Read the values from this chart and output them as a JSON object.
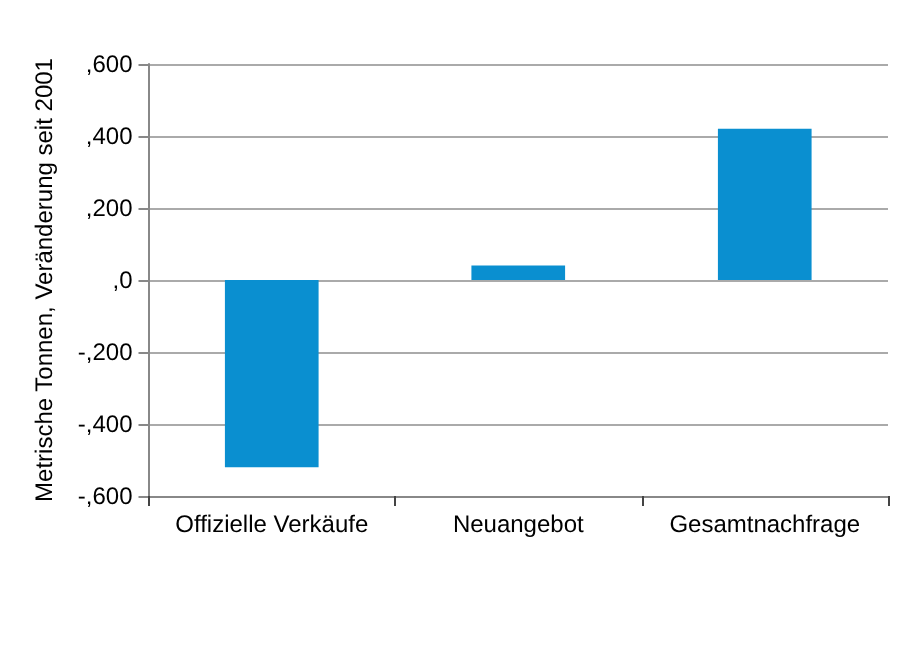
{
  "chart_data": {
    "type": "bar",
    "ylabel": "Metrische Tonnen, Veränderung seit 2001",
    "categories": [
      "Offizielle Verkäufe",
      "Neuangebot",
      "Gesamtnachfrage"
    ],
    "values": [
      -520,
      40,
      420
    ],
    "color": "#0a8fd0",
    "ylim": [
      -600,
      600
    ],
    "yticks": [
      {
        "value": -600,
        "label": "-,600"
      },
      {
        "value": -400,
        "label": "-,400"
      },
      {
        "value": -200,
        "label": "-,200"
      },
      {
        "value": 0,
        "label": ",0"
      },
      {
        "value": 200,
        "label": ",200"
      },
      {
        "value": 400,
        "label": ",400"
      },
      {
        "value": 600,
        "label": ",600"
      }
    ],
    "grid": "y"
  }
}
